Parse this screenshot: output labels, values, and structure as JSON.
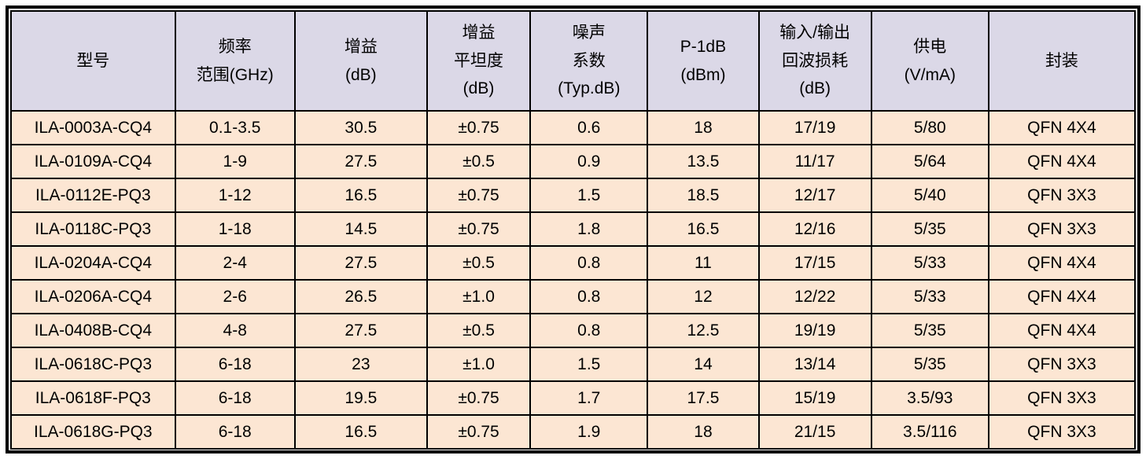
{
  "table": {
    "headers": [
      "型号",
      "频率\n范围(GHz)",
      "增益\n(dB)",
      "增益\n平坦度\n(dB)",
      "噪声\n系数\n(Typ.dB)",
      "P-1dB\n(dBm)",
      "输入/输出\n回波损耗\n(dB)",
      "供电\n(V/mA)",
      "封装"
    ],
    "rows": [
      [
        "ILA-0003A-CQ4",
        "0.1-3.5",
        "30.5",
        "±0.75",
        "0.6",
        "18",
        "17/19",
        "5/80",
        "QFN 4X4"
      ],
      [
        "ILA-0109A-CQ4",
        "1-9",
        "27.5",
        "±0.5",
        "0.9",
        "13.5",
        "11/17",
        "5/64",
        "QFN 4X4"
      ],
      [
        "ILA-0112E-PQ3",
        "1-12",
        "16.5",
        "±0.75",
        "1.5",
        "18.5",
        "12/17",
        "5/40",
        "QFN 3X3"
      ],
      [
        "ILA-0118C-PQ3",
        "1-18",
        "14.5",
        "±0.75",
        "1.8",
        "16.5",
        "12/16",
        "5/35",
        "QFN 3X3"
      ],
      [
        "ILA-0204A-CQ4",
        "2-4",
        "27.5",
        "±0.5",
        "0.8",
        "11",
        "17/15",
        "5/33",
        "QFN 4X4"
      ],
      [
        "ILA-0206A-CQ4",
        "2-6",
        "26.5",
        "±1.0",
        "0.8",
        "12",
        "12/22",
        "5/33",
        "QFN 4X4"
      ],
      [
        "ILA-0408B-CQ4",
        "4-8",
        "27.5",
        "±0.5",
        "0.8",
        "12.5",
        "19/19",
        "5/35",
        "QFN 4X4"
      ],
      [
        "ILA-0618C-PQ3",
        "6-18",
        "23",
        "±1.0",
        "1.5",
        "14",
        "13/14",
        "5/35",
        "QFN 3X3"
      ],
      [
        "ILA-0618F-PQ3",
        "6-18",
        "19.5",
        "±0.75",
        "1.7",
        "17.5",
        "15/19",
        "3.5/93",
        "QFN 3X3"
      ],
      [
        "ILA-0618G-PQ3",
        "6-18",
        "16.5",
        "±0.75",
        "1.9",
        "18",
        "21/15",
        "3.5/116",
        "QFN 3X3"
      ]
    ]
  },
  "colors": {
    "header_bg": "#dbd8e7",
    "row_bg": "#fce6d3",
    "border": "#000000",
    "text": "#000000",
    "page_bg": "#ffffff"
  }
}
